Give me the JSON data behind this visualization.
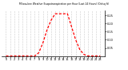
{
  "title": "Milwaukee Weather Evapotranspiration per Hour (Last 24 Hours) (Oz/sq ft)",
  "hours": [
    0,
    1,
    2,
    3,
    4,
    5,
    6,
    7,
    8,
    9,
    10,
    11,
    12,
    13,
    14,
    15,
    16,
    17,
    18,
    19,
    20,
    21,
    22,
    23
  ],
  "values": [
    0,
    0,
    0,
    0,
    0,
    0,
    0,
    0,
    0.02,
    0.08,
    0.16,
    0.22,
    0.26,
    0.26,
    0.26,
    0.26,
    0.18,
    0.1,
    0.04,
    0.01,
    0,
    0,
    0,
    0
  ],
  "line_color": "#ff0000",
  "grid_color": "#888888",
  "bg_color": "#ffffff",
  "ylim": [
    0,
    0.28
  ],
  "ytick_values": [
    0.05,
    0.1,
    0.15,
    0.2,
    0.25
  ],
  "title_fontsize": 2.2,
  "tick_fontsize": 2.5,
  "line_width": 0.9
}
